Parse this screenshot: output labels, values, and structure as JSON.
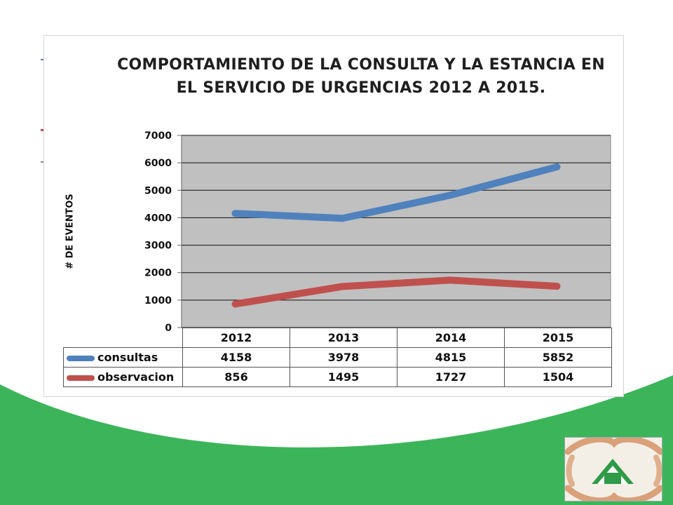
{
  "colors": {
    "green_band": "#3cb55a",
    "plot_background": "#c0c0c0",
    "consultas": "#4f81bd",
    "observacion": "#c0504d"
  },
  "chart_data": {
    "type": "line",
    "title": "COMPORTAMIENTO DE LA CONSULTA Y LA ESTANCIA EN EL SERVICIO DE URGENCIAS 2012 A 2015.",
    "ylabel": "# DE EVENTOS",
    "xlabel": "",
    "categories": [
      "2012",
      "2013",
      "2014",
      "2015"
    ],
    "ylim": [
      0,
      7000
    ],
    "yticks": [
      0,
      1000,
      2000,
      3000,
      4000,
      5000,
      6000,
      7000
    ],
    "grid": true,
    "legend": "data-table",
    "series": [
      {
        "name": "consultas",
        "values": [
          4158,
          3978,
          4815,
          5852
        ],
        "color": "#4f81bd"
      },
      {
        "name": "observacion",
        "values": [
          856,
          1495,
          1727,
          1504
        ],
        "color": "#c0504d"
      }
    ]
  },
  "logo": {
    "name": "hands-house-logo"
  }
}
